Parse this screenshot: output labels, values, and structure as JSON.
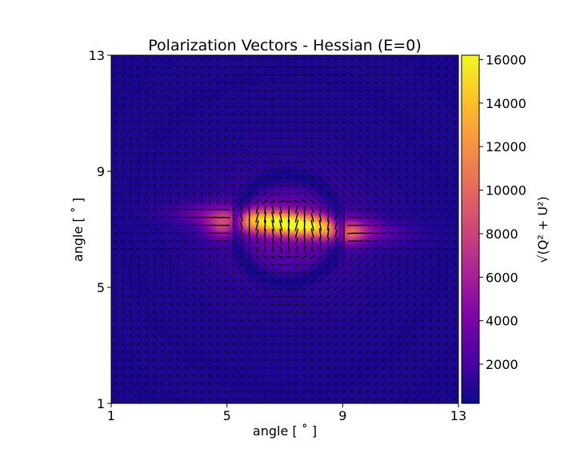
{
  "chart_data": {
    "type": "heatmap",
    "title": "Polarization Vectors - Hessian (E=0)",
    "xlabel": "angle [ $^\\circ$ ]",
    "xlabel_display": "angle [ ˚ ]",
    "ylabel_display": "angle [ ˚ ]",
    "xlim": [
      1,
      13
    ],
    "ylim": [
      1,
      13
    ],
    "xticks": [
      1,
      5,
      9,
      13
    ],
    "yticks": [
      1,
      5,
      9,
      13
    ],
    "colormap": "plasma",
    "grid": false,
    "overlay": "quiver polarization vectors (black)",
    "colorbar": {
      "label_display": "√(Q² + U²)",
      "range": [
        200,
        16200
      ],
      "ticks": [
        2000,
        4000,
        6000,
        8000,
        10000,
        12000,
        14000,
        16000
      ],
      "placement": "right"
    },
    "features": {
      "background_level": 600,
      "peak_level": 16000,
      "bright_band_center": [
        7.1,
        7.0
      ],
      "bright_band_orientation": "horizontal, slightly tilted",
      "dark_ring_radius": 1.85
    }
  }
}
